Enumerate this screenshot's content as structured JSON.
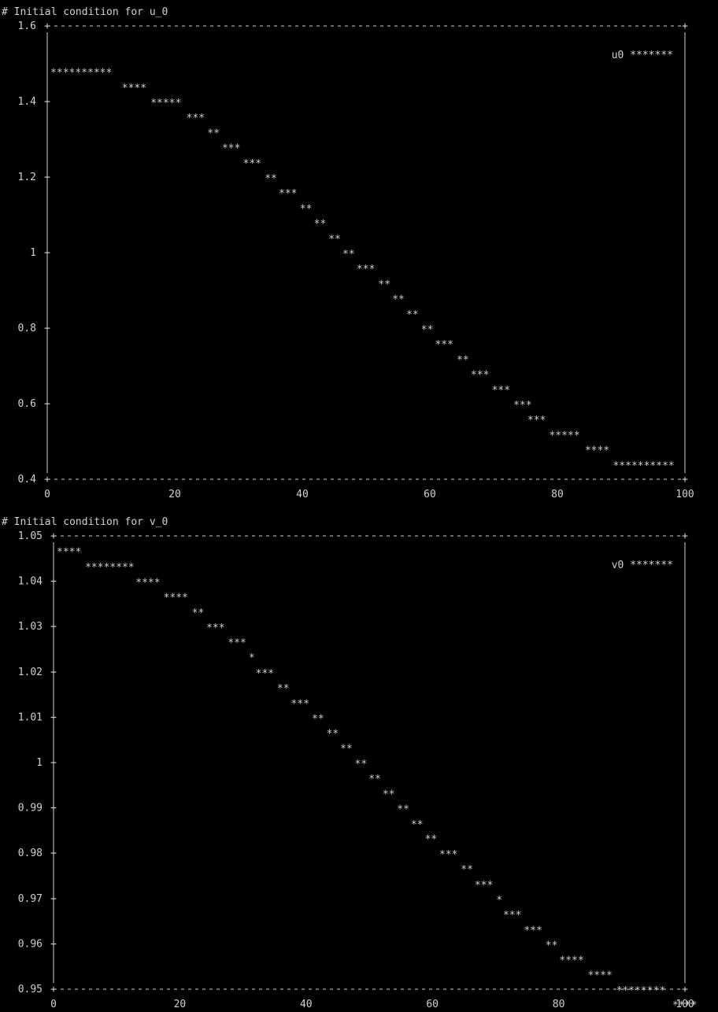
{
  "chart_data": [
    {
      "type": "scatter",
      "title": "# Initial condition for u_0",
      "legend": {
        "label": "u0",
        "marker": "*******",
        "placement": "top-right"
      },
      "xlim": [
        0,
        100
      ],
      "ylim": [
        0.4,
        1.6
      ],
      "x_ticks": [
        "0",
        "20",
        "40",
        "60",
        "80",
        "100"
      ],
      "y_ticks": [
        "0.4",
        "0.6",
        "0.8",
        "1",
        "1.2",
        "1.4",
        "1.6"
      ],
      "points": [
        {
          "x": 0.5,
          "y": 1.48,
          "run": "**********"
        },
        {
          "x": 11.7,
          "y": 1.44,
          "run": "****"
        },
        {
          "x": 16.2,
          "y": 1.4,
          "run": "*****"
        },
        {
          "x": 21.8,
          "y": 1.36,
          "run": "***"
        },
        {
          "x": 25.1,
          "y": 1.32,
          "run": "**"
        },
        {
          "x": 27.4,
          "y": 1.28,
          "run": "***"
        },
        {
          "x": 30.7,
          "y": 1.24,
          "run": "***"
        },
        {
          "x": 34.1,
          "y": 1.2,
          "run": "**"
        },
        {
          "x": 36.3,
          "y": 1.16,
          "run": "***"
        },
        {
          "x": 39.6,
          "y": 1.12,
          "run": "**"
        },
        {
          "x": 41.8,
          "y": 1.08,
          "run": "**"
        },
        {
          "x": 44.1,
          "y": 1.04,
          "run": "**"
        },
        {
          "x": 46.3,
          "y": 1.0,
          "run": "**"
        },
        {
          "x": 48.5,
          "y": 0.96,
          "run": "***"
        },
        {
          "x": 51.9,
          "y": 0.92,
          "run": "**"
        },
        {
          "x": 54.1,
          "y": 0.88,
          "run": "**"
        },
        {
          "x": 56.3,
          "y": 0.84,
          "run": "**"
        },
        {
          "x": 58.6,
          "y": 0.8,
          "run": "**"
        },
        {
          "x": 60.8,
          "y": 0.76,
          "run": "***"
        },
        {
          "x": 64.2,
          "y": 0.72,
          "run": "**"
        },
        {
          "x": 66.4,
          "y": 0.68,
          "run": "***"
        },
        {
          "x": 69.7,
          "y": 0.64,
          "run": "***"
        },
        {
          "x": 73.1,
          "y": 0.6,
          "run": "***"
        },
        {
          "x": 75.3,
          "y": 0.56,
          "run": "***"
        },
        {
          "x": 78.7,
          "y": 0.52,
          "run": "*****"
        },
        {
          "x": 84.3,
          "y": 0.48,
          "run": "****"
        },
        {
          "x": 88.7,
          "y": 0.44,
          "run": "**********"
        }
      ]
    },
    {
      "type": "scatter",
      "title": "# Initial condition for v_0",
      "legend": {
        "label": "v0",
        "marker": "*******",
        "placement": "top-right"
      },
      "xlim": [
        0,
        100
      ],
      "ylim": [
        0.95,
        1.05
      ],
      "x_ticks": [
        "0",
        "20",
        "40",
        "60",
        "80",
        "100"
      ],
      "y_ticks": [
        "0.95",
        "0.96",
        "0.97",
        "0.98",
        "0.99",
        "1",
        "1.01",
        "1.02",
        "1.03",
        "1.04",
        "1.05"
      ],
      "points": [
        {
          "x": 0.5,
          "y": 1.0468,
          "run": "****"
        },
        {
          "x": 5.0,
          "y": 1.0434,
          "run": "********"
        },
        {
          "x": 13.0,
          "y": 1.04,
          "run": "****"
        },
        {
          "x": 17.4,
          "y": 1.0367,
          "run": "****"
        },
        {
          "x": 21.9,
          "y": 1.0333,
          "run": "**"
        },
        {
          "x": 24.2,
          "y": 1.03,
          "run": "***"
        },
        {
          "x": 27.6,
          "y": 1.0267,
          "run": "***"
        },
        {
          "x": 30.9,
          "y": 1.0234,
          "run": "*"
        },
        {
          "x": 32.0,
          "y": 1.02,
          "run": "***"
        },
        {
          "x": 35.4,
          "y": 1.0167,
          "run": "**"
        },
        {
          "x": 37.6,
          "y": 1.0133,
          "run": "***"
        },
        {
          "x": 40.9,
          "y": 1.01,
          "run": "**"
        },
        {
          "x": 43.2,
          "y": 1.0067,
          "run": "**"
        },
        {
          "x": 45.4,
          "y": 1.0034,
          "run": "**"
        },
        {
          "x": 47.7,
          "y": 1.0,
          "run": "**"
        },
        {
          "x": 49.9,
          "y": 0.9967,
          "run": "**"
        },
        {
          "x": 52.1,
          "y": 0.9933,
          "run": "**"
        },
        {
          "x": 54.4,
          "y": 0.99,
          "run": "**"
        },
        {
          "x": 56.6,
          "y": 0.9866,
          "run": "**"
        },
        {
          "x": 58.8,
          "y": 0.9834,
          "run": "**"
        },
        {
          "x": 61.1,
          "y": 0.98,
          "run": "***"
        },
        {
          "x": 64.5,
          "y": 0.9767,
          "run": "**"
        },
        {
          "x": 66.7,
          "y": 0.9733,
          "run": "***"
        },
        {
          "x": 70.1,
          "y": 0.97,
          "run": "*"
        },
        {
          "x": 71.2,
          "y": 0.9667,
          "run": "***"
        },
        {
          "x": 74.5,
          "y": 0.9633,
          "run": "***"
        },
        {
          "x": 77.9,
          "y": 0.96,
          "run": "**"
        },
        {
          "x": 80.1,
          "y": 0.9567,
          "run": "****"
        },
        {
          "x": 84.6,
          "y": 0.9534,
          "run": "****"
        },
        {
          "x": 89.1,
          "y": 0.95,
          "run": "********"
        },
        {
          "x": 98.0,
          "y": 0.9468,
          "run": "****"
        }
      ]
    }
  ]
}
